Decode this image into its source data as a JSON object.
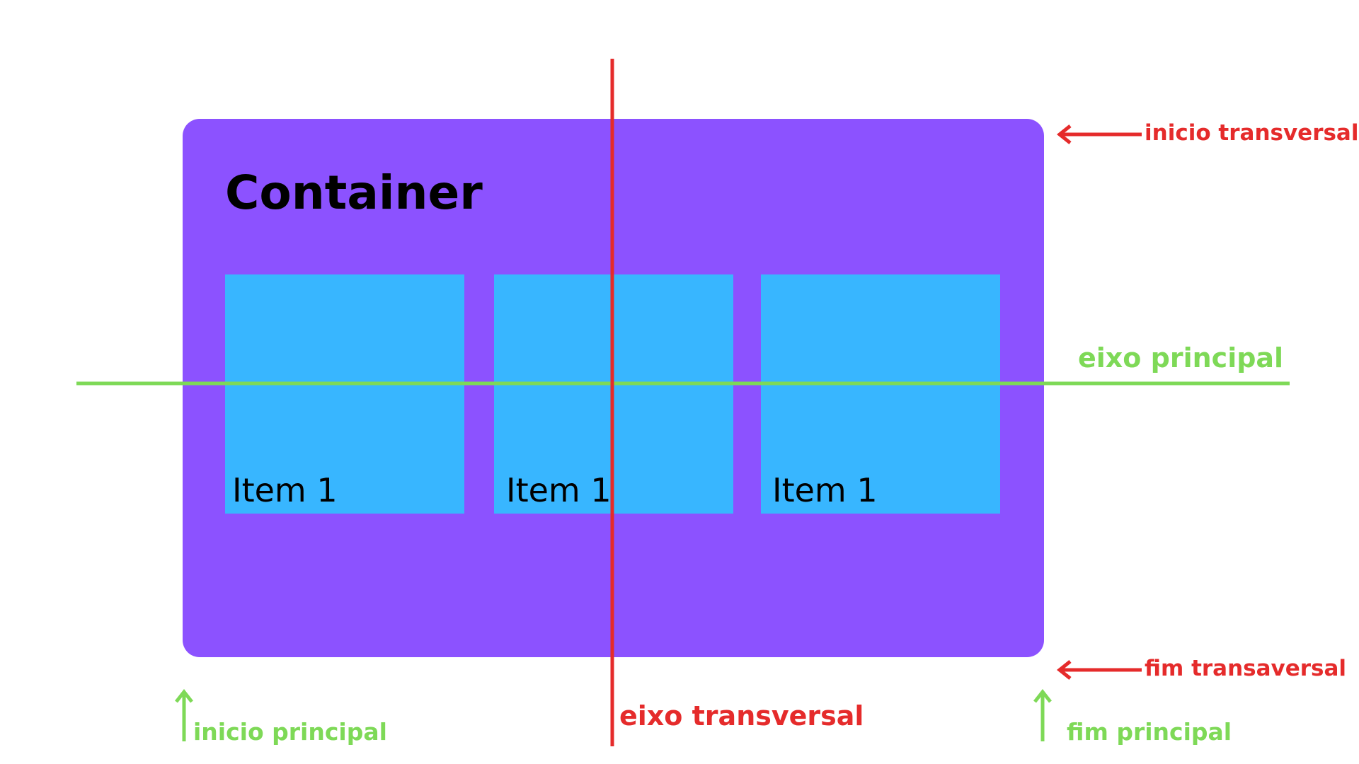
{
  "colors": {
    "container": "#8c52ff",
    "item": "#38b6ff",
    "main_axis": "#7ed957",
    "cross_axis": "#e52b2b"
  },
  "container": {
    "title": "Container"
  },
  "items": [
    {
      "label": "Item 1"
    },
    {
      "label": "Item 1"
    },
    {
      "label": "Item 1"
    }
  ],
  "annotations": {
    "cross_start": "inicio transversal",
    "cross_end": "fim transaversal",
    "main_axis": "eixo principal",
    "cross_axis": "eixo transversal",
    "main_start": "inicio principal",
    "main_end": "fim principal"
  }
}
